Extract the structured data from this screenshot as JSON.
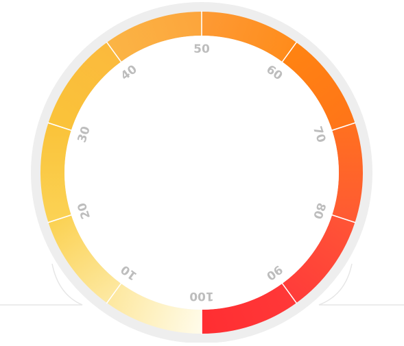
{
  "dial": {
    "scale_labels": [
      "10",
      "20",
      "30",
      "40",
      "50",
      "60",
      "70",
      "80",
      "90",
      "100"
    ],
    "segments": [
      {
        "from": "#fffbe8",
        "to": "#fde8a0"
      },
      {
        "from": "#fde8a0",
        "to": "#fbd254"
      },
      {
        "from": "#fbd254",
        "to": "#fac33a"
      },
      {
        "from": "#fac33a",
        "to": "#fbba3c"
      },
      {
        "from": "#fbb445",
        "to": "#fca53c"
      },
      {
        "from": "#fd9a34",
        "to": "#ff8c1c"
      },
      {
        "from": "#ff8312",
        "to": "#ff7518"
      },
      {
        "from": "#ff7020",
        "to": "#ff5a33"
      },
      {
        "from": "#ff5436",
        "to": "#ff3c3a"
      },
      {
        "from": "#ff3838",
        "to": "#ff2e32"
      }
    ],
    "colors": {
      "track": "#eeeeee",
      "separator": "#ffffff",
      "label": "#bdbdbd",
      "face": "#ffffff"
    }
  }
}
